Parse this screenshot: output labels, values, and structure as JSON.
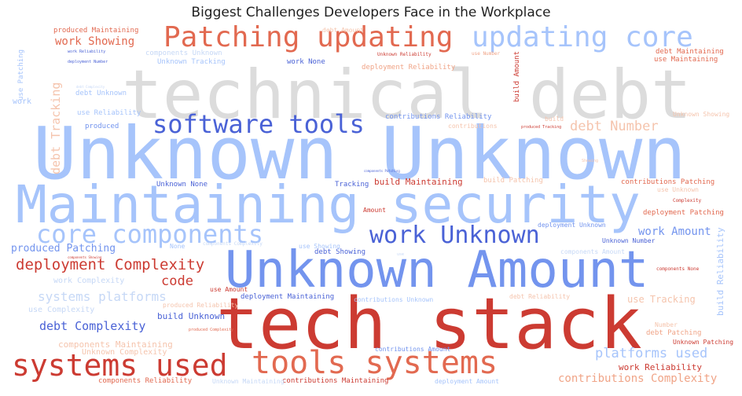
{
  "title": "Biggest Challenges Developers Face in the Workplace",
  "palette": {
    "gray": "#dcdcdc",
    "blue_dark": "#4a62d6",
    "blue_mid": "#7394ee",
    "blue_light": "#a6c4fb",
    "blue_pale": "#c6d8f6",
    "red_dark": "#cc3b32",
    "red_mid": "#e26950",
    "red_light": "#f0a487",
    "red_pale": "#f5c4ad"
  },
  "words": [
    {
      "text": "technical debt",
      "color": "gray"
    },
    {
      "text": "Unknown Unknown",
      "color": "blue_light"
    },
    {
      "text": "tech stack",
      "color": "red_dark"
    },
    {
      "text": "Maintaining security",
      "color": "blue_light"
    },
    {
      "text": "Unknown Amount",
      "color": "blue_mid"
    },
    {
      "text": "Patching updating",
      "color": "red_mid"
    },
    {
      "text": "updating core",
      "color": "blue_light"
    },
    {
      "text": "systems used",
      "color": "red_dark"
    },
    {
      "text": "tools systems",
      "color": "red_mid"
    },
    {
      "text": "software tools",
      "color": "blue_dark"
    },
    {
      "text": "core components",
      "color": "blue_light"
    },
    {
      "text": "work Unknown",
      "color": "blue_dark"
    },
    {
      "text": "deployment Complexity",
      "color": "red_dark"
    },
    {
      "text": "systems platforms",
      "color": "blue_pale"
    },
    {
      "text": "debt Complexity",
      "color": "blue_dark"
    },
    {
      "text": "platforms used",
      "color": "blue_light"
    },
    {
      "text": "debt Number",
      "color": "red_pale"
    },
    {
      "text": "code",
      "color": "red_dark"
    },
    {
      "text": "work Showing",
      "color": "red_mid"
    },
    {
      "text": "contributions Complexity",
      "color": "red_light"
    },
    {
      "text": "work Amount",
      "color": "blue_mid"
    },
    {
      "text": "produced Patching",
      "color": "blue_mid"
    },
    {
      "text": "debt Tracking",
      "color": "red_pale"
    },
    {
      "text": "build Maintaining",
      "color": "red_dark"
    },
    {
      "text": "build Unknown",
      "color": "blue_dark"
    },
    {
      "text": "use Tracking",
      "color": "red_pale"
    },
    {
      "text": "work Reliability",
      "color": "red_dark"
    },
    {
      "text": "components Maintaining",
      "color": "red_pale"
    },
    {
      "text": "deployment Patching",
      "color": "red_mid"
    },
    {
      "text": "contributions Patching",
      "color": "red_mid"
    },
    {
      "text": "Unknown Complexity",
      "color": "red_pale"
    },
    {
      "text": "debt Showing",
      "color": "blue_dark"
    },
    {
      "text": "deployment Maintaining",
      "color": "blue_dark"
    },
    {
      "text": "contributions Maintaining",
      "color": "red_dark"
    },
    {
      "text": "components Reliability",
      "color": "red_mid"
    },
    {
      "text": "build Patching",
      "color": "red_pale"
    },
    {
      "text": "debt Patching",
      "color": "red_light"
    },
    {
      "text": "work Complexity",
      "color": "blue_pale"
    },
    {
      "text": "use Complexity",
      "color": "blue_pale"
    },
    {
      "text": "debt Unknown",
      "color": "blue_light"
    },
    {
      "text": "use Reliability",
      "color": "blue_light"
    },
    {
      "text": "Unknown None",
      "color": "blue_dark"
    },
    {
      "text": "Unknown Tracking",
      "color": "blue_light"
    },
    {
      "text": "work None",
      "color": "blue_dark"
    },
    {
      "text": "produced Maintaining",
      "color": "red_mid"
    },
    {
      "text": "debt Maintaining",
      "color": "red_mid"
    },
    {
      "text": "use Maintaining",
      "color": "red_mid"
    },
    {
      "text": "deployment Reliability",
      "color": "red_light"
    },
    {
      "text": "contributions Reliability",
      "color": "blue_mid"
    },
    {
      "text": "Unknown Showing",
      "color": "red_pale"
    },
    {
      "text": "Unknown Number",
      "color": "blue_dark"
    },
    {
      "text": "deployment Unknown",
      "color": "blue_mid"
    },
    {
      "text": "components Amount",
      "color": "blue_pale"
    },
    {
      "text": "use Showing",
      "color": "blue_light"
    },
    {
      "text": "Tracking",
      "color": "blue_dark"
    },
    {
      "text": "Amount",
      "color": "red_dark"
    },
    {
      "text": "produced",
      "color": "blue_mid"
    },
    {
      "text": "None",
      "color": "blue_light"
    },
    {
      "text": "work",
      "color": "blue_light"
    },
    {
      "text": "use Patching",
      "color": "blue_light"
    },
    {
      "text": "build Amount",
      "color": "red_dark"
    },
    {
      "text": "build Reliability",
      "color": "blue_light"
    },
    {
      "text": "debt Reliability",
      "color": "red_pale"
    },
    {
      "text": "contributions Unknown",
      "color": "blue_light"
    },
    {
      "text": "contributions Amount",
      "color": "blue_mid"
    },
    {
      "text": "deployment Amount",
      "color": "blue_light"
    },
    {
      "text": "Unknown Maintaining",
      "color": "blue_pale"
    },
    {
      "text": "Unknown Patching",
      "color": "red_dark"
    },
    {
      "text": "components Unknown",
      "color": "blue_pale"
    },
    {
      "text": "produced Reliability",
      "color": "red_pale"
    },
    {
      "text": "debt Amount",
      "color": "red_pale"
    },
    {
      "text": "use Amount",
      "color": "red_dark"
    },
    {
      "text": "use Unknown",
      "color": "red_pale"
    },
    {
      "text": "Number",
      "color": "red_pale"
    },
    {
      "text": "Complexity",
      "color": "red_dark"
    },
    {
      "text": "components None",
      "color": "red_dark"
    },
    {
      "text": "components Complexity",
      "color": "blue_pale"
    },
    {
      "text": "Unknown Reliability",
      "color": "red_dark"
    },
    {
      "text": "use Number",
      "color": "red_light"
    },
    {
      "text": "build",
      "color": "red_pale"
    },
    {
      "text": "contributions",
      "color": "red_pale"
    },
    {
      "text": "produced Tracking",
      "color": "red_dark"
    },
    {
      "text": "deployment Number",
      "color": "blue_dark"
    },
    {
      "text": "work Reliability",
      "color": "blue_dark"
    },
    {
      "text": "components Patching",
      "color": "blue_dark"
    },
    {
      "text": "use",
      "color": "blue_pale"
    },
    {
      "text": "Showing",
      "color": "red_pale"
    },
    {
      "text": "debt Complexity",
      "color": "blue_pale"
    },
    {
      "text": "components Showing",
      "color": "red_dark"
    },
    {
      "text": "produced Complexity",
      "color": "red_mid"
    }
  ]
}
